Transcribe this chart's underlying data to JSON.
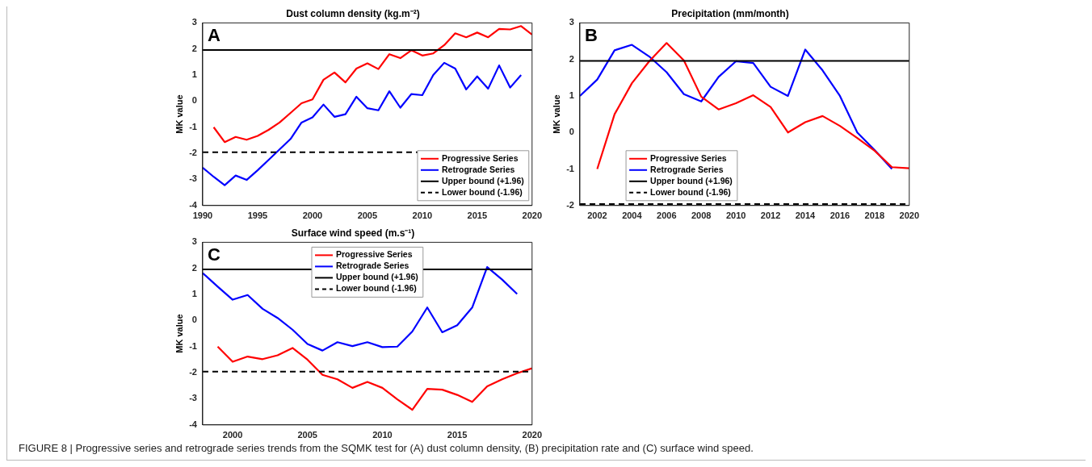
{
  "chart_data": [
    {
      "type": "line",
      "title": "Dust column density (kg.m⁻²)",
      "ylabel": "MK value",
      "xlim": [
        1990,
        2020
      ],
      "xticks": [
        1990,
        1995,
        2000,
        2005,
        2010,
        2015,
        2020
      ],
      "ylim": [
        -4,
        3
      ],
      "yticks": [
        -4,
        -3,
        -2,
        -1,
        0,
        1,
        2,
        3
      ],
      "grid": false,
      "legend": "bottom right",
      "annotations": [
        "A"
      ],
      "series": [
        {
          "name": "Progressive Series",
          "color": "#ff0000",
          "x": [
            1991,
            1992,
            1993,
            1994,
            1995,
            1996,
            1997,
            1998,
            1999,
            2000,
            2001,
            2002,
            2003,
            2004,
            2005,
            2006,
            2007,
            2008,
            2009,
            2010,
            2011,
            2012,
            2013,
            2014,
            2015,
            2016,
            2017,
            2018,
            2019,
            2020
          ],
          "values": [
            -1.0,
            -1.57,
            -1.37,
            -1.48,
            -1.33,
            -1.1,
            -0.82,
            -0.45,
            -0.08,
            0.07,
            0.82,
            1.1,
            0.72,
            1.25,
            1.45,
            1.23,
            1.8,
            1.65,
            1.95,
            1.75,
            1.83,
            2.15,
            2.6,
            2.45,
            2.63,
            2.45,
            2.77,
            2.75,
            2.88,
            2.55
          ]
        },
        {
          "name": "Retrograde Series",
          "color": "#0000ff",
          "x": [
            1990,
            1991,
            1992,
            1993,
            1994,
            1995,
            1996,
            1997,
            1998,
            1999,
            2000,
            2001,
            2002,
            2003,
            2004,
            2005,
            2006,
            2007,
            2008,
            2009,
            2010,
            2011,
            2012,
            2013,
            2014,
            2015,
            2016,
            2017,
            2018,
            2019
          ],
          "values": [
            -2.55,
            -2.9,
            -3.22,
            -2.85,
            -3.02,
            -2.65,
            -2.25,
            -1.85,
            -1.45,
            -0.82,
            -0.62,
            -0.13,
            -0.6,
            -0.5,
            0.17,
            -0.27,
            -0.35,
            0.38,
            -0.25,
            0.27,
            0.23,
            1.0,
            1.47,
            1.25,
            0.45,
            0.95,
            0.48,
            1.37,
            0.52,
            1.0
          ]
        }
      ],
      "ref_lines": [
        {
          "axis": "y",
          "value": 1.96,
          "label": "Upper bound (+1.96)",
          "color": "#000000",
          "line_style": "solid"
        },
        {
          "axis": "y",
          "value": -1.96,
          "label": "Lower bound (-1.96)",
          "color": "#000000",
          "line_style": "dashed"
        }
      ]
    },
    {
      "type": "line",
      "title": "Precipitation (mm/month)",
      "ylabel": "MK value",
      "xlim": [
        2001,
        2020
      ],
      "xticks": [
        2002,
        2004,
        2006,
        2008,
        2010,
        2012,
        2014,
        2016,
        2018,
        2020
      ],
      "ylim": [
        -2,
        3
      ],
      "yticks": [
        -2,
        -1,
        0,
        1,
        2,
        3
      ],
      "grid": false,
      "legend": "bottom left",
      "annotations": [
        "B"
      ],
      "series": [
        {
          "name": "Progressive Series",
          "color": "#ff0000",
          "x": [
            2002,
            2003,
            2004,
            2005,
            2006,
            2007,
            2008,
            2009,
            2010,
            2011,
            2012,
            2013,
            2014,
            2015,
            2016,
            2017,
            2018,
            2019,
            2020
          ],
          "values": [
            -1.0,
            0.5,
            1.35,
            1.95,
            2.45,
            1.97,
            0.98,
            0.63,
            0.8,
            1.02,
            0.7,
            0.0,
            0.28,
            0.45,
            0.18,
            -0.15,
            -0.5,
            -0.95,
            -0.98
          ]
        },
        {
          "name": "Retrograde Series",
          "color": "#0000ff",
          "x": [
            2001,
            2002,
            2003,
            2004,
            2005,
            2006,
            2007,
            2008,
            2009,
            2010,
            2011,
            2012,
            2013,
            2014,
            2015,
            2016,
            2017,
            2018,
            2019
          ],
          "values": [
            1.0,
            1.45,
            2.25,
            2.4,
            2.08,
            1.65,
            1.05,
            0.85,
            1.52,
            1.95,
            1.9,
            1.25,
            1.0,
            2.27,
            1.7,
            1.0,
            0.0,
            -0.48,
            -1.0
          ]
        }
      ],
      "ref_lines": [
        {
          "axis": "y",
          "value": 1.96,
          "label": "Upper bound (+1.96)",
          "color": "#000000",
          "line_style": "solid"
        },
        {
          "axis": "y",
          "value": -1.96,
          "label": "Lower bound (-1.96)",
          "color": "#000000",
          "line_style": "dashed"
        }
      ]
    },
    {
      "type": "line",
      "title": "Surface wind speed (m.s⁻¹)",
      "ylabel": "MK value",
      "xlim": [
        1998,
        2020
      ],
      "xticks": [
        2000,
        2005,
        2010,
        2015,
        2020
      ],
      "ylim": [
        -4,
        3
      ],
      "yticks": [
        -4,
        -3,
        -2,
        -1,
        0,
        1,
        2,
        3
      ],
      "grid": false,
      "legend": "top",
      "annotations": [
        "C",
        "FIGURE 8 | Progressive series and retrograde series trends from the SQMK test for (A) dust column density, (B) precipitation rate and (C) surface wind speed."
      ],
      "series": [
        {
          "name": "Progressive Series",
          "color": "#ff0000",
          "x": [
            1999,
            2000,
            2001,
            2002,
            2003,
            2004,
            2005,
            2006,
            2007,
            2008,
            2009,
            2010,
            2011,
            2012,
            2013,
            2014,
            2015,
            2016,
            2017,
            2018,
            2019,
            2020
          ],
          "values": [
            -1.0,
            -1.58,
            -1.38,
            -1.48,
            -1.33,
            -1.05,
            -1.5,
            -2.08,
            -2.25,
            -2.58,
            -2.35,
            -2.58,
            -3.02,
            -3.42,
            -2.62,
            -2.65,
            -2.85,
            -3.12,
            -2.52,
            -2.25,
            -2.02,
            -1.83
          ]
        },
        {
          "name": "Retrograde Series",
          "color": "#0000ff",
          "x": [
            1998,
            1999,
            2000,
            2001,
            2002,
            2003,
            2004,
            2005,
            2006,
            2007,
            2008,
            2009,
            2010,
            2011,
            2012,
            2013,
            2014,
            2015,
            2016,
            2017,
            2018,
            2019
          ],
          "values": [
            1.82,
            1.3,
            0.8,
            0.98,
            0.45,
            0.1,
            -0.35,
            -0.9,
            -1.15,
            -0.83,
            -0.98,
            -0.83,
            -1.02,
            -1.0,
            -0.42,
            0.5,
            -0.45,
            -0.18,
            0.5,
            2.05,
            1.57,
            1.02
          ]
        }
      ],
      "ref_lines": [
        {
          "axis": "y",
          "value": 1.96,
          "label": "Upper bound (+1.96)",
          "color": "#000000",
          "line_style": "solid"
        },
        {
          "axis": "y",
          "value": -1.96,
          "label": "Lower bound (-1.96)",
          "color": "#000000",
          "line_style": "dashed"
        }
      ]
    }
  ]
}
